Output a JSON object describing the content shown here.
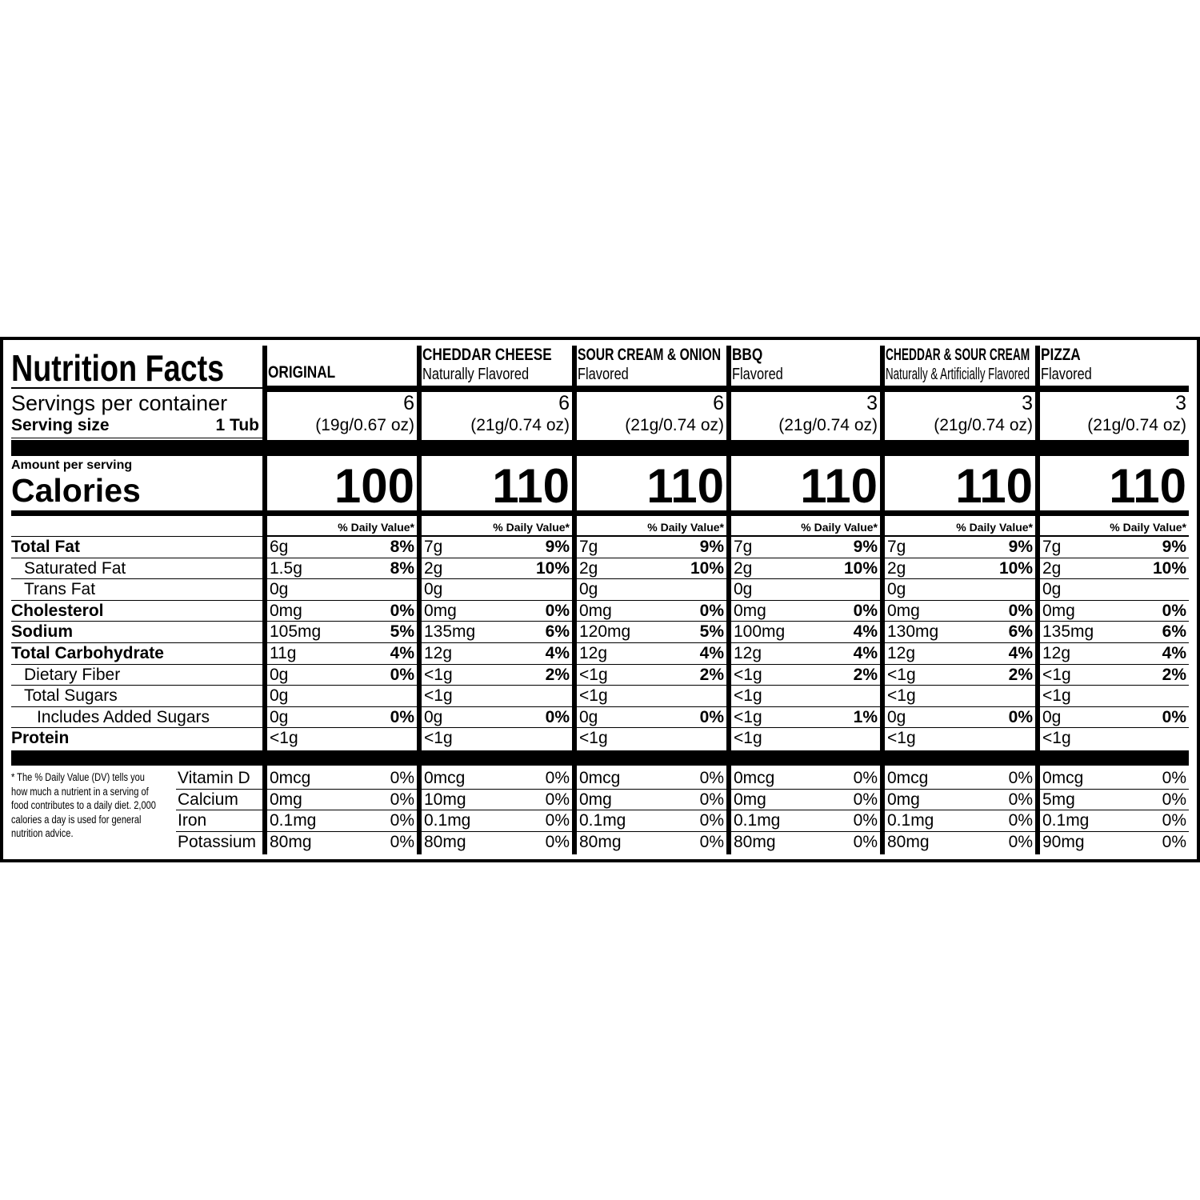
{
  "title": "Nutrition Facts",
  "servings_label": "Servings per container",
  "serving_size_label": "Serving size",
  "serving_size_value": "1 Tub",
  "amount_per_serving": "Amount per serving",
  "calories_label": "Calories",
  "dv_header": "% Daily Value*",
  "nutrient_labels": [
    {
      "key": "total_fat",
      "label": "Total Fat",
      "bold": true,
      "indent": 0
    },
    {
      "key": "saturated_fat",
      "label": "Saturated Fat",
      "bold": false,
      "indent": 1
    },
    {
      "key": "trans_fat",
      "label": "Trans Fat",
      "bold": false,
      "indent": 1
    },
    {
      "key": "cholesterol",
      "label": "Cholesterol",
      "bold": true,
      "indent": 0
    },
    {
      "key": "sodium",
      "label": "Sodium",
      "bold": true,
      "indent": 0
    },
    {
      "key": "total_carbohydrate",
      "label": "Total Carbohydrate",
      "bold": true,
      "indent": 0
    },
    {
      "key": "dietary_fiber",
      "label": "Dietary Fiber",
      "bold": false,
      "indent": 1
    },
    {
      "key": "total_sugars",
      "label": "Total Sugars",
      "bold": false,
      "indent": 1
    },
    {
      "key": "added_sugars",
      "label": "Includes Added Sugars",
      "bold": false,
      "indent": 2
    },
    {
      "key": "protein",
      "label": "Protein",
      "bold": true,
      "indent": 0
    }
  ],
  "vitamin_labels": [
    "Vitamin D",
    "Calcium",
    "Iron",
    "Potassium"
  ],
  "footnote": "* The % Daily Value (DV) tells you how much a nutrient in a serving of food contributes to a daily diet. 2,000 calories a day is used for general nutrition advice.",
  "products": [
    {
      "name": "ORIGINAL",
      "flavor": "",
      "servings": "6",
      "serving_weight": "(19g/0.67 oz)",
      "calories": "100",
      "nutrients": [
        [
          "6g",
          "8%"
        ],
        [
          "1.5g",
          "8%"
        ],
        [
          "0g",
          ""
        ],
        [
          "0mg",
          "0%"
        ],
        [
          "105mg",
          "5%"
        ],
        [
          "11g",
          "4%"
        ],
        [
          "0g",
          "0%"
        ],
        [
          "0g",
          ""
        ],
        [
          "0g",
          "0%"
        ],
        [
          "<1g",
          ""
        ]
      ],
      "vitamins": [
        [
          "0mcg",
          "0%"
        ],
        [
          "0mg",
          "0%"
        ],
        [
          "0.1mg",
          "0%"
        ],
        [
          "80mg",
          "0%"
        ]
      ]
    },
    {
      "name": "CHEDDAR CHEESE",
      "flavor": "Naturally Flavored",
      "servings": "6",
      "serving_weight": "(21g/0.74 oz)",
      "calories": "110",
      "nutrients": [
        [
          "7g",
          "9%"
        ],
        [
          "2g",
          "10%"
        ],
        [
          "0g",
          ""
        ],
        [
          "0mg",
          "0%"
        ],
        [
          "135mg",
          "6%"
        ],
        [
          "12g",
          "4%"
        ],
        [
          "<1g",
          "2%"
        ],
        [
          "<1g",
          ""
        ],
        [
          "0g",
          "0%"
        ],
        [
          "<1g",
          ""
        ]
      ],
      "vitamins": [
        [
          "0mcg",
          "0%"
        ],
        [
          "10mg",
          "0%"
        ],
        [
          "0.1mg",
          "0%"
        ],
        [
          "80mg",
          "0%"
        ]
      ]
    },
    {
      "name": "SOUR CREAM & ONION",
      "flavor": "Flavored",
      "servings": "6",
      "serving_weight": "(21g/0.74 oz)",
      "calories": "110",
      "nutrients": [
        [
          "7g",
          "9%"
        ],
        [
          "2g",
          "10%"
        ],
        [
          "0g",
          ""
        ],
        [
          "0mg",
          "0%"
        ],
        [
          "120mg",
          "5%"
        ],
        [
          "12g",
          "4%"
        ],
        [
          "<1g",
          "2%"
        ],
        [
          "<1g",
          ""
        ],
        [
          "0g",
          "0%"
        ],
        [
          "<1g",
          ""
        ]
      ],
      "vitamins": [
        [
          "0mcg",
          "0%"
        ],
        [
          "0mg",
          "0%"
        ],
        [
          "0.1mg",
          "0%"
        ],
        [
          "80mg",
          "0%"
        ]
      ]
    },
    {
      "name": "BBQ",
      "flavor": "Flavored",
      "servings": "3",
      "serving_weight": "(21g/0.74 oz)",
      "calories": "110",
      "nutrients": [
        [
          "7g",
          "9%"
        ],
        [
          "2g",
          "10%"
        ],
        [
          "0g",
          ""
        ],
        [
          "0mg",
          "0%"
        ],
        [
          "100mg",
          "4%"
        ],
        [
          "12g",
          "4%"
        ],
        [
          "<1g",
          "2%"
        ],
        [
          "<1g",
          ""
        ],
        [
          "<1g",
          "1%"
        ],
        [
          "<1g",
          ""
        ]
      ],
      "vitamins": [
        [
          "0mcg",
          "0%"
        ],
        [
          "0mg",
          "0%"
        ],
        [
          "0.1mg",
          "0%"
        ],
        [
          "80mg",
          "0%"
        ]
      ]
    },
    {
      "name": "CHEDDAR & SOUR CREAM",
      "flavor": "Naturally & Artificially Flavored",
      "servings": "3",
      "serving_weight": "(21g/0.74 oz)",
      "calories": "110",
      "nutrients": [
        [
          "7g",
          "9%"
        ],
        [
          "2g",
          "10%"
        ],
        [
          "0g",
          ""
        ],
        [
          "0mg",
          "0%"
        ],
        [
          "130mg",
          "6%"
        ],
        [
          "12g",
          "4%"
        ],
        [
          "<1g",
          "2%"
        ],
        [
          "<1g",
          ""
        ],
        [
          "0g",
          "0%"
        ],
        [
          "<1g",
          ""
        ]
      ],
      "vitamins": [
        [
          "0mcg",
          "0%"
        ],
        [
          "0mg",
          "0%"
        ],
        [
          "0.1mg",
          "0%"
        ],
        [
          "80mg",
          "0%"
        ]
      ]
    },
    {
      "name": "PIZZA",
      "flavor": "Flavored",
      "servings": "3",
      "serving_weight": "(21g/0.74 oz)",
      "calories": "110",
      "nutrients": [
        [
          "7g",
          "9%"
        ],
        [
          "2g",
          "10%"
        ],
        [
          "0g",
          ""
        ],
        [
          "0mg",
          "0%"
        ],
        [
          "135mg",
          "6%"
        ],
        [
          "12g",
          "4%"
        ],
        [
          "<1g",
          "2%"
        ],
        [
          "<1g",
          ""
        ],
        [
          "0g",
          "0%"
        ],
        [
          "<1g",
          ""
        ]
      ],
      "vitamins": [
        [
          "0mcg",
          "0%"
        ],
        [
          "5mg",
          "0%"
        ],
        [
          "0.1mg",
          "0%"
        ],
        [
          "90mg",
          "0%"
        ]
      ]
    }
  ]
}
